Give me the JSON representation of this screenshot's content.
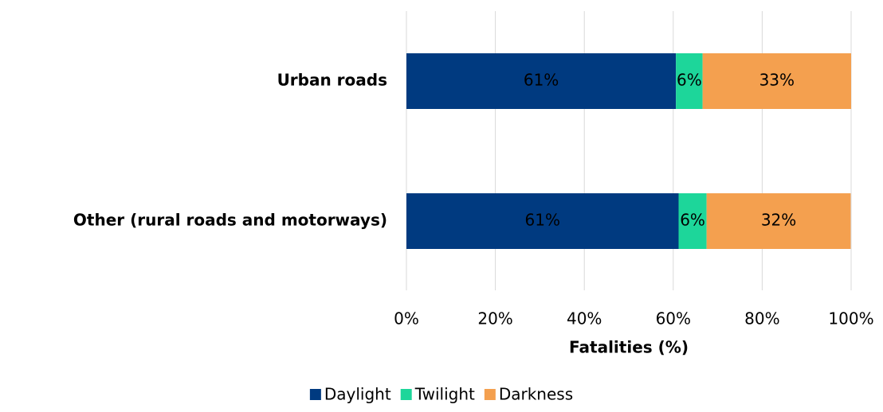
{
  "chart_data": {
    "type": "stacked_barh",
    "categories": [
      "Urban roads",
      "Other (rural roads and motorways)"
    ],
    "series": [
      {
        "name": "Daylight",
        "color": "#003a80",
        "values": [
          60.6,
          61.2
        ],
        "value_labels": [
          "61%",
          "61%"
        ]
      },
      {
        "name": "Twilight",
        "color": "#1dd69a",
        "values": [
          6.0,
          6.3
        ],
        "value_labels": [
          "6%",
          "6%"
        ]
      },
      {
        "name": "Darkness",
        "color": "#f4a04f",
        "values": [
          33.4,
          32.4
        ],
        "value_labels": [
          "33%",
          "32%"
        ]
      }
    ],
    "xlabel": "Fatalities (%)",
    "xlim": [
      0,
      100
    ],
    "xticks": [
      {
        "value": 0,
        "label": "0%"
      },
      {
        "value": 20,
        "label": "20%"
      },
      {
        "value": 40,
        "label": "40%"
      },
      {
        "value": 60,
        "label": "60%"
      },
      {
        "value": 80,
        "label": "80%"
      },
      {
        "value": 100,
        "label": "100%"
      }
    ],
    "grid": true,
    "legend": "bottom"
  }
}
